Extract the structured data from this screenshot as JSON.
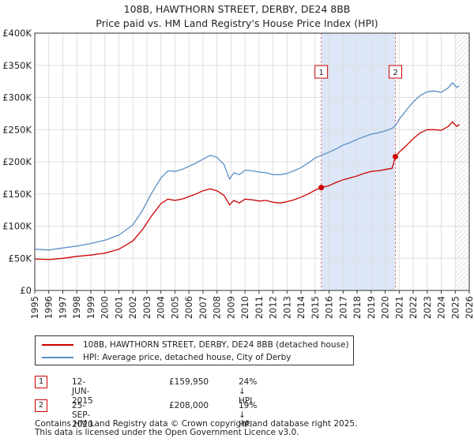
{
  "header": {
    "title_line1": "108B, HAWTHORN STREET, DERBY, DE24 8BB",
    "title_line2": "Price paid vs. HM Land Registry's House Price Index (HPI)"
  },
  "chart_data": {
    "type": "line",
    "ylim": [
      0,
      400000
    ],
    "xlim": [
      1995,
      2026
    ],
    "yticks": [
      {
        "value": 0,
        "label": "£0"
      },
      {
        "value": 50000,
        "label": "£50K"
      },
      {
        "value": 100000,
        "label": "£100K"
      },
      {
        "value": 150000,
        "label": "£150K"
      },
      {
        "value": 200000,
        "label": "£200K"
      },
      {
        "value": 250000,
        "label": "£250K"
      },
      {
        "value": 300000,
        "label": "£300K"
      },
      {
        "value": 350000,
        "label": "£350K"
      },
      {
        "value": 400000,
        "label": "£400K"
      }
    ],
    "xticks": [
      "1995",
      "1996",
      "1997",
      "1998",
      "1999",
      "2000",
      "2001",
      "2002",
      "2003",
      "2004",
      "2005",
      "2006",
      "2007",
      "2008",
      "2009",
      "2010",
      "2011",
      "2012",
      "2013",
      "2014",
      "2015",
      "2016",
      "2017",
      "2018",
      "2019",
      "2020",
      "2021",
      "2022",
      "2023",
      "2024",
      "2025",
      "2026"
    ],
    "series": [
      {
        "name": "108B, HAWTHORN STREET, DERBY, DE24 8BB (detached house)",
        "color": "#cc0000",
        "points": [
          [
            1995.0,
            49000
          ],
          [
            1996.0,
            48000
          ],
          [
            1997.0,
            50000
          ],
          [
            1998.0,
            53000
          ],
          [
            1999.0,
            55000
          ],
          [
            2000.0,
            58000
          ],
          [
            2001.0,
            64000
          ],
          [
            2002.0,
            77000
          ],
          [
            2002.7,
            95000
          ],
          [
            2003.3,
            115000
          ],
          [
            2004.0,
            135000
          ],
          [
            2004.5,
            142000
          ],
          [
            2005.0,
            140000
          ],
          [
            2005.5,
            142000
          ],
          [
            2006.0,
            146000
          ],
          [
            2006.5,
            150000
          ],
          [
            2007.0,
            155000
          ],
          [
            2007.5,
            158000
          ],
          [
            2008.0,
            155000
          ],
          [
            2008.5,
            148000
          ],
          [
            2008.9,
            133000
          ],
          [
            2009.2,
            140000
          ],
          [
            2009.6,
            136000
          ],
          [
            2010.0,
            142000
          ],
          [
            2010.5,
            141000
          ],
          [
            2011.0,
            139000
          ],
          [
            2011.5,
            140000
          ],
          [
            2012.0,
            137000
          ],
          [
            2012.5,
            136000
          ],
          [
            2013.0,
            138000
          ],
          [
            2013.5,
            141000
          ],
          [
            2014.0,
            145000
          ],
          [
            2014.5,
            150000
          ],
          [
            2015.0,
            156000
          ],
          [
            2015.44,
            159950
          ],
          [
            2016.0,
            163000
          ],
          [
            2016.5,
            168000
          ],
          [
            2017.0,
            172000
          ],
          [
            2017.5,
            175000
          ],
          [
            2018.0,
            178000
          ],
          [
            2018.5,
            182000
          ],
          [
            2019.0,
            185000
          ],
          [
            2019.5,
            186000
          ],
          [
            2020.0,
            188000
          ],
          [
            2020.5,
            190000
          ],
          [
            2020.73,
            208000
          ],
          [
            2021.0,
            215000
          ],
          [
            2021.5,
            225000
          ],
          [
            2022.0,
            236000
          ],
          [
            2022.5,
            245000
          ],
          [
            2023.0,
            250000
          ],
          [
            2023.5,
            250000
          ],
          [
            2024.0,
            249000
          ],
          [
            2024.5,
            255000
          ],
          [
            2024.8,
            262000
          ],
          [
            2025.1,
            255000
          ],
          [
            2025.3,
            258000
          ]
        ]
      },
      {
        "name": "HPI: Average price, detached house, City of Derby",
        "color": "#5b8fc9",
        "points": [
          [
            1995.0,
            64000
          ],
          [
            1996.0,
            63000
          ],
          [
            1997.0,
            66000
          ],
          [
            1998.0,
            69000
          ],
          [
            1999.0,
            73000
          ],
          [
            2000.0,
            78000
          ],
          [
            2001.0,
            86000
          ],
          [
            2002.0,
            102000
          ],
          [
            2002.7,
            125000
          ],
          [
            2003.3,
            150000
          ],
          [
            2004.0,
            175000
          ],
          [
            2004.5,
            186000
          ],
          [
            2005.0,
            185000
          ],
          [
            2005.5,
            188000
          ],
          [
            2006.0,
            193000
          ],
          [
            2006.5,
            198000
          ],
          [
            2007.0,
            204000
          ],
          [
            2007.5,
            210000
          ],
          [
            2008.0,
            207000
          ],
          [
            2008.5,
            196000
          ],
          [
            2008.9,
            173000
          ],
          [
            2009.2,
            183000
          ],
          [
            2009.6,
            180000
          ],
          [
            2010.0,
            187000
          ],
          [
            2010.5,
            186000
          ],
          [
            2011.0,
            184000
          ],
          [
            2011.5,
            183000
          ],
          [
            2012.0,
            180000
          ],
          [
            2012.5,
            180000
          ],
          [
            2013.0,
            182000
          ],
          [
            2013.5,
            186000
          ],
          [
            2014.0,
            191000
          ],
          [
            2014.5,
            198000
          ],
          [
            2015.0,
            206000
          ],
          [
            2015.44,
            210000
          ],
          [
            2016.0,
            215000
          ],
          [
            2016.5,
            220000
          ],
          [
            2017.0,
            226000
          ],
          [
            2017.5,
            230000
          ],
          [
            2018.0,
            235000
          ],
          [
            2018.5,
            239000
          ],
          [
            2019.0,
            243000
          ],
          [
            2019.5,
            245000
          ],
          [
            2020.0,
            248000
          ],
          [
            2020.5,
            252000
          ],
          [
            2020.73,
            256000
          ],
          [
            2021.0,
            266000
          ],
          [
            2021.5,
            280000
          ],
          [
            2022.0,
            293000
          ],
          [
            2022.5,
            303000
          ],
          [
            2023.0,
            309000
          ],
          [
            2023.5,
            310000
          ],
          [
            2024.0,
            308000
          ],
          [
            2024.5,
            315000
          ],
          [
            2024.8,
            323000
          ],
          [
            2025.1,
            316000
          ],
          [
            2025.3,
            318000
          ]
        ]
      }
    ],
    "shaded_region": {
      "from": 2015.44,
      "to": 2020.73
    },
    "hatched_after": 2025.0,
    "annotations": [
      {
        "label": "1",
        "x": 2015.44,
        "y": 159950
      },
      {
        "label": "2",
        "x": 2020.73,
        "y": 208000
      }
    ]
  },
  "legend": {
    "items": [
      {
        "label": "108B, HAWTHORN STREET, DERBY, DE24 8BB (detached house)",
        "color": "#cc0000"
      },
      {
        "label": "HPI: Average price, detached house, City of Derby",
        "color": "#5b8fc9"
      }
    ]
  },
  "transactions": [
    {
      "num": "1",
      "date": "12-JUN-2015",
      "price": "£159,950",
      "hpi": "24% ↓ HPI"
    },
    {
      "num": "2",
      "date": "25-SEP-2020",
      "price": "£208,000",
      "hpi": "19% ↓ HPI"
    }
  ],
  "footer": {
    "line1": "Contains HM Land Registry data © Crown copyright and database right 2025.",
    "line2": "This data is licensed under the Open Government Licence v3.0."
  }
}
